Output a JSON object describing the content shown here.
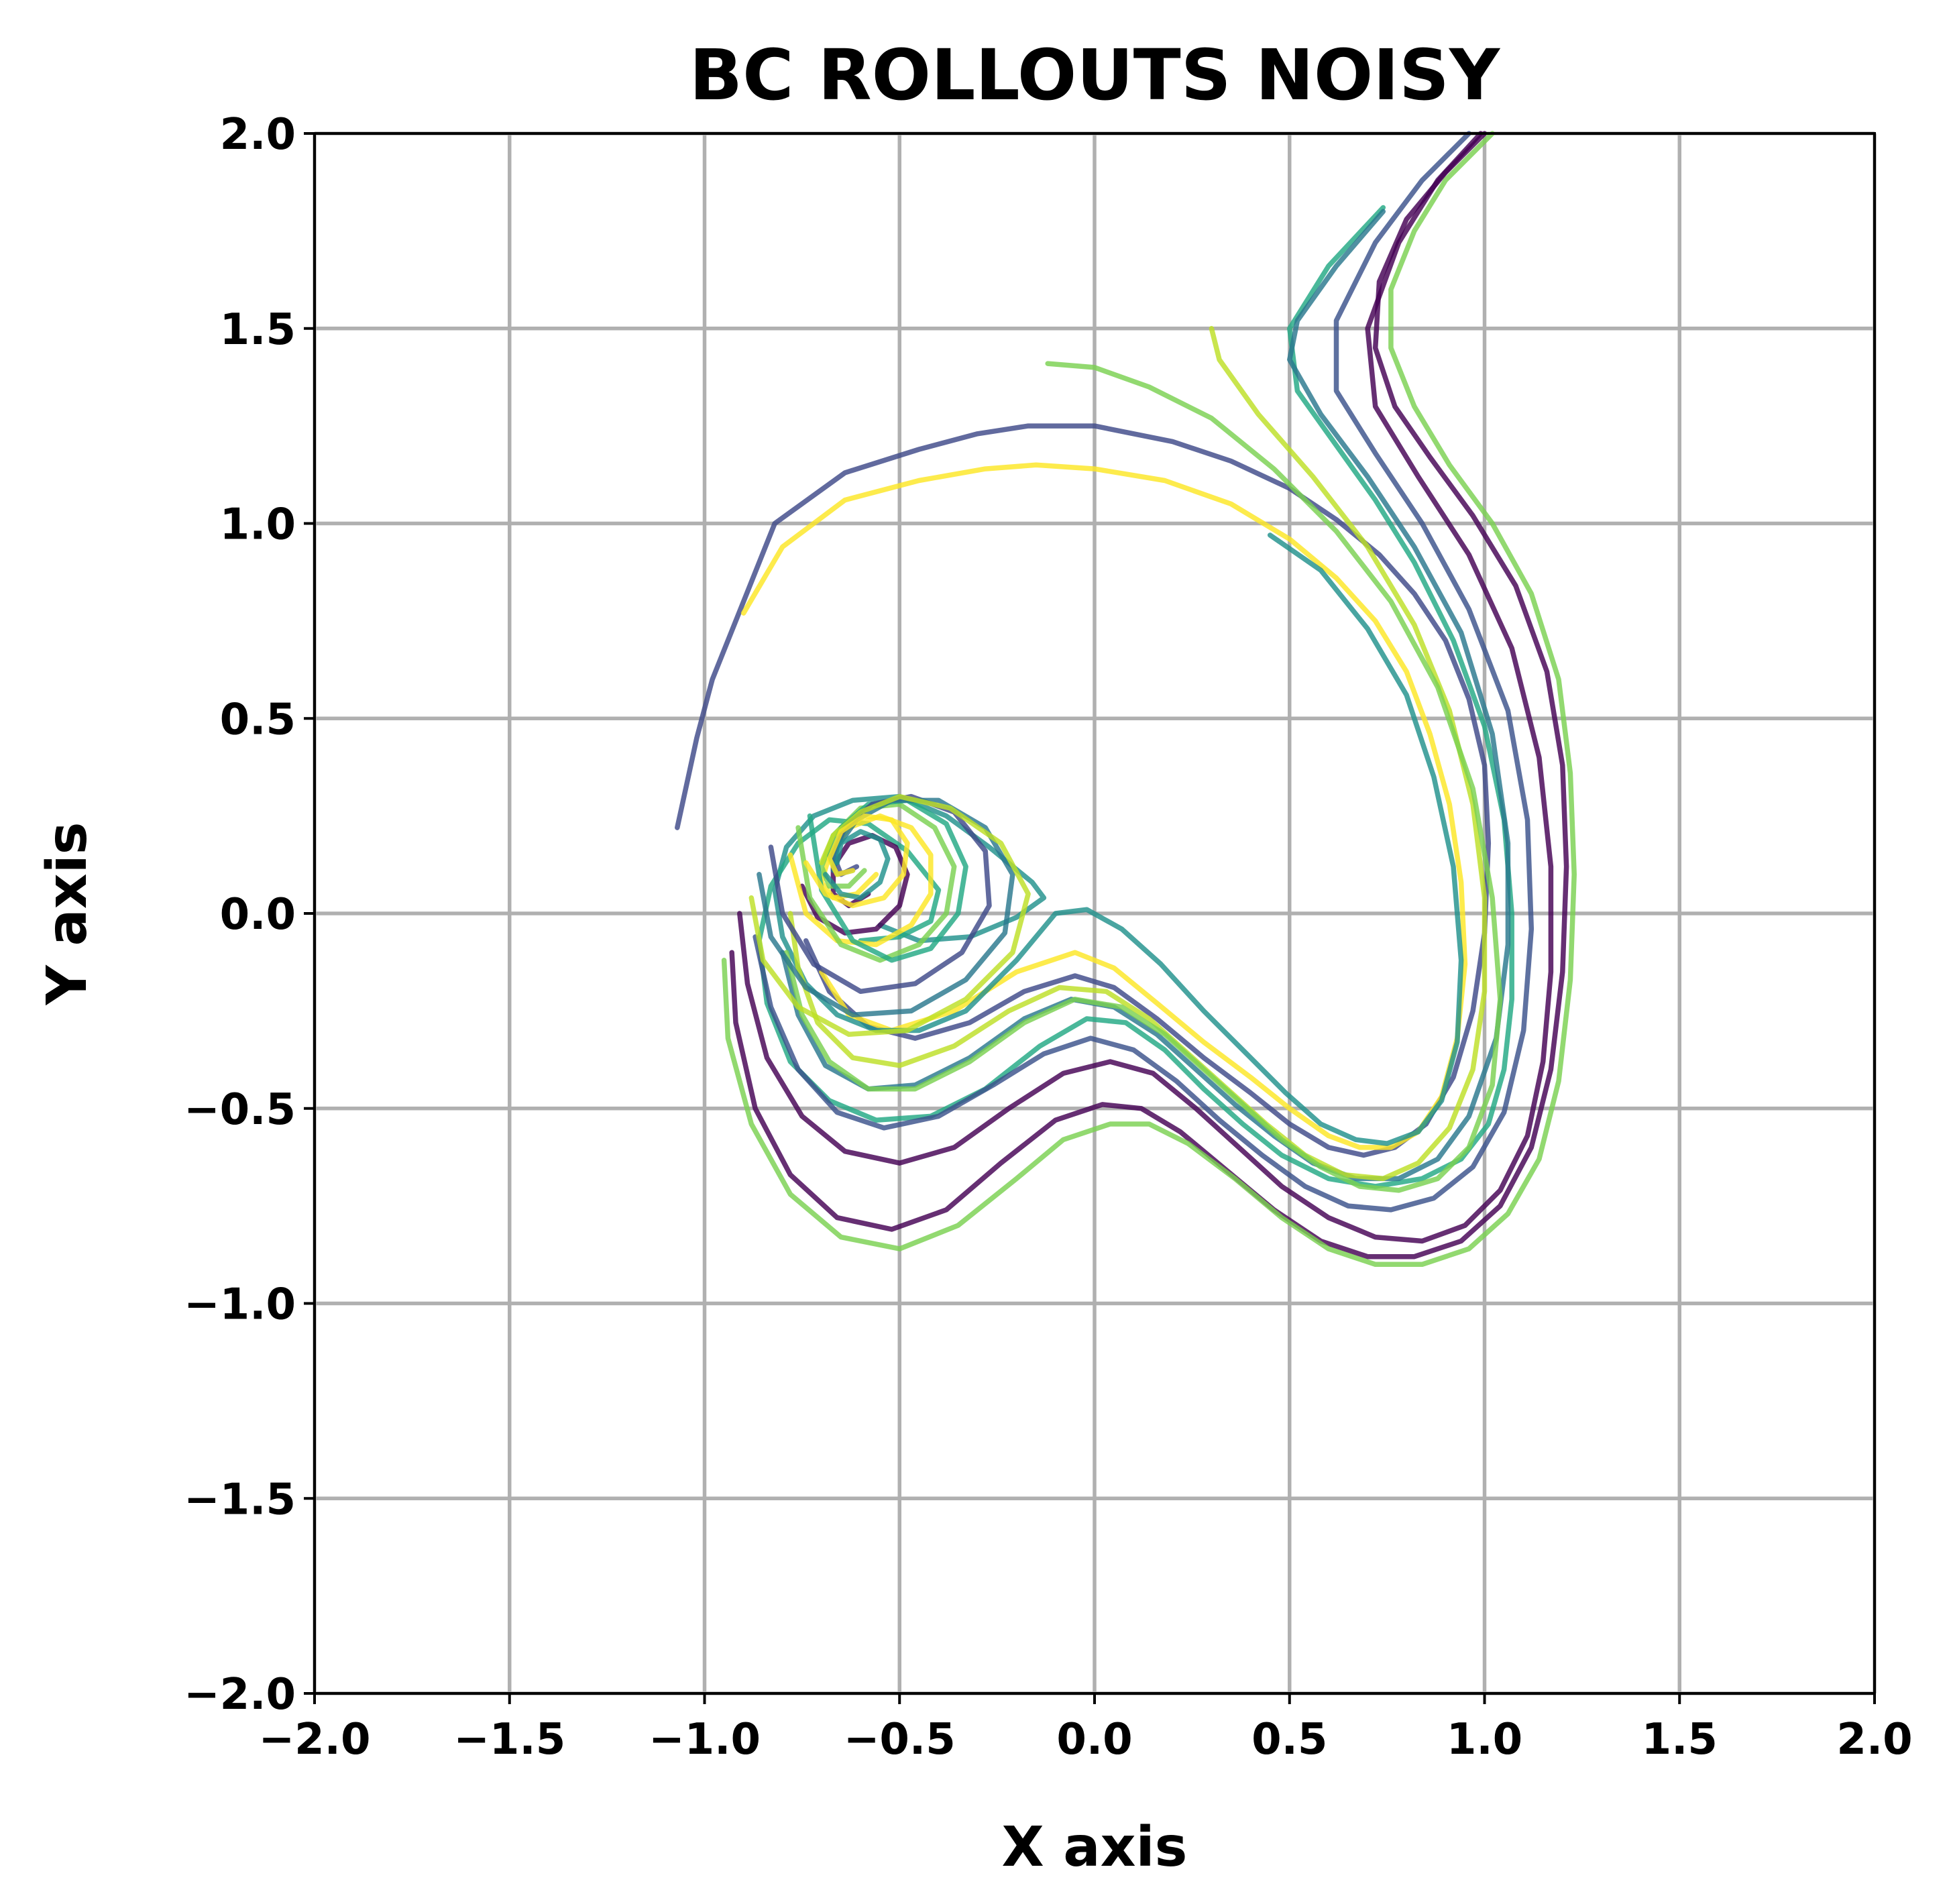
{
  "chart_data": {
    "type": "line",
    "title": "BC ROLLOUTS NOISY",
    "xlabel": "X axis",
    "ylabel": "Y axis",
    "xlim": [
      -2.0,
      2.0
    ],
    "ylim": [
      -2.0,
      2.0
    ],
    "xticks": [
      -2.0,
      -1.5,
      -1.0,
      -0.5,
      0.0,
      0.5,
      1.0,
      1.5,
      2.0
    ],
    "yticks": [
      -2.0,
      -1.5,
      -1.0,
      -0.5,
      0.0,
      0.5,
      1.0,
      1.5,
      2.0
    ],
    "xtick_labels": [
      "−2.0",
      "−1.5",
      "−1.0",
      "−0.5",
      "0.0",
      "0.5",
      "1.0",
      "1.5",
      "2.0"
    ],
    "ytick_labels": [
      "−2.0",
      "−1.5",
      "−1.0",
      "−0.5",
      "0.0",
      "0.5",
      "1.0",
      "1.5",
      "2.0"
    ],
    "grid": true,
    "colormap": "viridis",
    "opacity": 0.82,
    "series": [
      {
        "color": "#3e4989",
        "x": [
          -1.07,
          -1.02,
          -0.98,
          -0.9,
          -0.82,
          -0.64,
          -0.45,
          -0.3,
          -0.17,
          0.0,
          0.2,
          0.35,
          0.5,
          0.62,
          0.73,
          0.82,
          0.9,
          0.96,
          1.0,
          1.01,
          1.0,
          0.97,
          0.92,
          0.85,
          0.77,
          0.69,
          0.6,
          0.5,
          0.4,
          0.28,
          0.16,
          0.05,
          -0.05,
          -0.18,
          -0.32,
          -0.46,
          -0.58,
          -0.68,
          -0.74
        ],
        "y": [
          0.22,
          0.45,
          0.6,
          0.8,
          1.0,
          1.13,
          1.19,
          1.23,
          1.25,
          1.25,
          1.21,
          1.16,
          1.09,
          1.01,
          0.92,
          0.82,
          0.7,
          0.55,
          0.38,
          0.18,
          -0.05,
          -0.25,
          -0.42,
          -0.54,
          -0.6,
          -0.62,
          -0.6,
          -0.54,
          -0.46,
          -0.37,
          -0.27,
          -0.19,
          -0.16,
          -0.2,
          -0.28,
          -0.32,
          -0.29,
          -0.2,
          -0.07
        ]
      },
      {
        "color": "#fde725",
        "x": [
          -0.9,
          -0.8,
          -0.64,
          -0.45,
          -0.28,
          -0.15,
          0.0,
          0.18,
          0.35,
          0.5,
          0.62,
          0.72,
          0.8,
          0.86,
          0.91,
          0.94,
          0.95,
          0.93,
          0.89,
          0.83,
          0.76,
          0.68,
          0.6,
          0.5,
          0.4,
          0.28,
          0.16,
          0.05,
          -0.05,
          -0.2,
          -0.36,
          -0.52,
          -0.63,
          -0.7
        ],
        "y": [
          0.77,
          0.94,
          1.06,
          1.11,
          1.14,
          1.15,
          1.14,
          1.11,
          1.05,
          0.96,
          0.86,
          0.75,
          0.62,
          0.46,
          0.28,
          0.08,
          -0.13,
          -0.32,
          -0.47,
          -0.56,
          -0.6,
          -0.6,
          -0.57,
          -0.5,
          -0.42,
          -0.33,
          -0.23,
          -0.14,
          -0.1,
          -0.15,
          -0.25,
          -0.3,
          -0.26,
          -0.15
        ]
      },
      {
        "color": "#21918c",
        "x": [
          0.45,
          0.58,
          0.7,
          0.8,
          0.87,
          0.92,
          0.94,
          0.93,
          0.89,
          0.83,
          0.75,
          0.67,
          0.58,
          0.49,
          0.39,
          0.28,
          0.17,
          0.07,
          -0.02,
          -0.1,
          -0.2,
          -0.33,
          -0.45,
          -0.56,
          -0.66,
          -0.74,
          -0.8,
          -0.82,
          -0.79,
          -0.72,
          -0.62,
          -0.5,
          -0.38,
          -0.27,
          -0.16,
          -0.13,
          -0.2,
          -0.32,
          -0.45,
          -0.55
        ],
        "y": [
          0.97,
          0.88,
          0.73,
          0.56,
          0.35,
          0.12,
          -0.12,
          -0.33,
          -0.48,
          -0.56,
          -0.59,
          -0.58,
          -0.54,
          -0.46,
          -0.36,
          -0.25,
          -0.13,
          -0.04,
          0.01,
          0.0,
          -0.12,
          -0.25,
          -0.3,
          -0.3,
          -0.26,
          -0.18,
          -0.06,
          0.06,
          0.17,
          0.25,
          0.29,
          0.3,
          0.25,
          0.17,
          0.08,
          0.04,
          -0.01,
          -0.06,
          -0.07,
          -0.03
        ]
      },
      {
        "color": "#22a884",
        "x": [
          0.74,
          0.6,
          0.5,
          0.52,
          0.62,
          0.72,
          0.82,
          0.92,
          1.0,
          1.05,
          1.07,
          1.07,
          1.05,
          1.01,
          0.94,
          0.84,
          0.72,
          0.6,
          0.48,
          0.38,
          0.28,
          0.18,
          0.08,
          -0.02,
          -0.14,
          -0.28,
          -0.42,
          -0.56,
          -0.68,
          -0.78,
          -0.84,
          -0.86,
          -0.83,
          -0.76,
          -0.68,
          -0.58,
          -0.48,
          -0.4,
          -0.42,
          -0.5,
          -0.6
        ],
        "y": [
          1.81,
          1.66,
          1.5,
          1.34,
          1.2,
          1.06,
          0.9,
          0.7,
          0.48,
          0.24,
          0.0,
          -0.22,
          -0.4,
          -0.54,
          -0.63,
          -0.68,
          -0.7,
          -0.68,
          -0.62,
          -0.54,
          -0.45,
          -0.35,
          -0.28,
          -0.27,
          -0.34,
          -0.45,
          -0.52,
          -0.53,
          -0.48,
          -0.38,
          -0.23,
          -0.07,
          0.07,
          0.18,
          0.24,
          0.23,
          0.16,
          0.06,
          -0.02,
          -0.06,
          -0.07
        ]
      },
      {
        "color": "#440154",
        "x": [
          1.0,
          0.9,
          0.8,
          0.73,
          0.72,
          0.77,
          0.86,
          0.97,
          1.08,
          1.16,
          1.2,
          1.21,
          1.2,
          1.17,
          1.12,
          1.04,
          0.94,
          0.82,
          0.7,
          0.58,
          0.46,
          0.34,
          0.22,
          0.12,
          0.02,
          -0.1,
          -0.24,
          -0.38,
          -0.52,
          -0.66,
          -0.78,
          -0.87,
          -0.92,
          -0.93
        ],
        "y": [
          2.0,
          1.9,
          1.78,
          1.62,
          1.45,
          1.3,
          1.17,
          1.02,
          0.84,
          0.62,
          0.38,
          0.12,
          -0.15,
          -0.4,
          -0.6,
          -0.75,
          -0.84,
          -0.88,
          -0.88,
          -0.84,
          -0.76,
          -0.66,
          -0.56,
          -0.5,
          -0.49,
          -0.53,
          -0.64,
          -0.76,
          -0.81,
          -0.78,
          -0.67,
          -0.5,
          -0.28,
          -0.1
        ]
      },
      {
        "color": "#7ad151",
        "x": [
          1.02,
          0.9,
          0.82,
          0.76,
          0.76,
          0.82,
          0.91,
          1.02,
          1.12,
          1.19,
          1.22,
          1.23,
          1.22,
          1.19,
          1.14,
          1.06,
          0.96,
          0.84,
          0.72,
          0.6,
          0.48,
          0.36,
          0.24,
          0.14,
          0.04,
          -0.08,
          -0.2,
          -0.35,
          -0.5,
          -0.65,
          -0.78,
          -0.88,
          -0.94,
          -0.95
        ],
        "y": [
          2.0,
          1.88,
          1.75,
          1.6,
          1.45,
          1.3,
          1.15,
          1.0,
          0.82,
          0.6,
          0.36,
          0.1,
          -0.17,
          -0.43,
          -0.63,
          -0.77,
          -0.86,
          -0.9,
          -0.9,
          -0.86,
          -0.78,
          -0.68,
          -0.59,
          -0.54,
          -0.54,
          -0.58,
          -0.68,
          -0.8,
          -0.86,
          -0.83,
          -0.72,
          -0.54,
          -0.32,
          -0.12
        ]
      },
      {
        "color": "#440154",
        "x": [
          0.99,
          0.88,
          0.78,
          0.7,
          0.72,
          0.83,
          0.96,
          1.07,
          1.14,
          1.17,
          1.17,
          1.15,
          1.11,
          1.04,
          0.95,
          0.84,
          0.72,
          0.6,
          0.48,
          0.37,
          0.26,
          0.15,
          0.04,
          -0.08,
          -0.22,
          -0.36,
          -0.5,
          -0.64,
          -0.75,
          -0.84,
          -0.89,
          -0.91
        ],
        "y": [
          2.0,
          1.88,
          1.72,
          1.5,
          1.3,
          1.12,
          0.92,
          0.68,
          0.4,
          0.12,
          -0.15,
          -0.38,
          -0.57,
          -0.71,
          -0.8,
          -0.84,
          -0.83,
          -0.78,
          -0.7,
          -0.6,
          -0.5,
          -0.41,
          -0.38,
          -0.41,
          -0.5,
          -0.6,
          -0.64,
          -0.61,
          -0.52,
          -0.37,
          -0.18,
          0.0
        ]
      },
      {
        "color": "#3b528b",
        "x": [
          0.96,
          0.84,
          0.72,
          0.62,
          0.62,
          0.72,
          0.84,
          0.96,
          1.06,
          1.11,
          1.12,
          1.1,
          1.05,
          0.97,
          0.87,
          0.76,
          0.65,
          0.54,
          0.43,
          0.32,
          0.21,
          0.1,
          -0.01,
          -0.13,
          -0.26,
          -0.4,
          -0.54,
          -0.66,
          -0.76,
          -0.83,
          -0.87
        ],
        "y": [
          2.0,
          1.88,
          1.72,
          1.52,
          1.34,
          1.18,
          1.0,
          0.78,
          0.52,
          0.24,
          -0.04,
          -0.3,
          -0.51,
          -0.65,
          -0.73,
          -0.76,
          -0.75,
          -0.7,
          -0.62,
          -0.53,
          -0.43,
          -0.35,
          -0.32,
          -0.36,
          -0.44,
          -0.52,
          -0.55,
          -0.51,
          -0.4,
          -0.24,
          -0.06
        ]
      },
      {
        "color": "#2a788e",
        "x": [
          0.74,
          0.62,
          0.52,
          0.5,
          0.58,
          0.7,
          0.82,
          0.94,
          1.02,
          1.06,
          1.06,
          1.03,
          0.96,
          0.88,
          0.78,
          0.67,
          0.56,
          0.46,
          0.36,
          0.26,
          0.16,
          0.05,
          -0.06,
          -0.18,
          -0.32,
          -0.46,
          -0.58,
          -0.69,
          -0.76,
          -0.8
        ],
        "y": [
          1.8,
          1.66,
          1.52,
          1.42,
          1.28,
          1.12,
          0.94,
          0.72,
          0.46,
          0.18,
          -0.08,
          -0.32,
          -0.52,
          -0.63,
          -0.68,
          -0.68,
          -0.64,
          -0.57,
          -0.49,
          -0.4,
          -0.31,
          -0.24,
          -0.22,
          -0.27,
          -0.37,
          -0.44,
          -0.45,
          -0.39,
          -0.26,
          -0.1
        ]
      },
      {
        "color": "#bddf26",
        "x": [
          0.3,
          0.32,
          0.42,
          0.56,
          0.7,
          0.82,
          0.91,
          0.97,
          1.0,
          1.0,
          0.97,
          0.91,
          0.83,
          0.74,
          0.64,
          0.54,
          0.44,
          0.34,
          0.24,
          0.14,
          0.03,
          -0.09,
          -0.22,
          -0.36,
          -0.5,
          -0.62,
          -0.71,
          -0.76,
          -0.78
        ],
        "y": [
          1.5,
          1.42,
          1.28,
          1.12,
          0.94,
          0.74,
          0.52,
          0.28,
          0.04,
          -0.2,
          -0.4,
          -0.55,
          -0.64,
          -0.68,
          -0.67,
          -0.62,
          -0.54,
          -0.45,
          -0.36,
          -0.27,
          -0.2,
          -0.19,
          -0.25,
          -0.34,
          -0.39,
          -0.37,
          -0.28,
          -0.14,
          0.0
        ]
      },
      {
        "color": "#7ad151",
        "x": [
          -0.12,
          0.0,
          0.14,
          0.3,
          0.46,
          0.62,
          0.76,
          0.88,
          0.97,
          1.02,
          1.04,
          1.02,
          0.96,
          0.88,
          0.78,
          0.68,
          0.58,
          0.48,
          0.38,
          0.28,
          0.18,
          0.07,
          -0.05,
          -0.18,
          -0.32,
          -0.46,
          -0.58,
          -0.68,
          -0.75,
          -0.79
        ],
        "y": [
          1.41,
          1.4,
          1.35,
          1.27,
          1.14,
          0.98,
          0.8,
          0.58,
          0.32,
          0.04,
          -0.22,
          -0.44,
          -0.6,
          -0.68,
          -0.71,
          -0.7,
          -0.65,
          -0.58,
          -0.49,
          -0.4,
          -0.31,
          -0.24,
          -0.22,
          -0.28,
          -0.38,
          -0.45,
          -0.45,
          -0.38,
          -0.26,
          -0.1
        ]
      },
      {
        "color": "#440154",
        "x": [
          -0.75,
          -0.71,
          -0.64,
          -0.56,
          -0.5,
          -0.48,
          -0.51,
          -0.57,
          -0.63,
          -0.67,
          -0.67,
          -0.63,
          -0.58
        ],
        "y": [
          0.07,
          -0.01,
          -0.05,
          -0.04,
          0.02,
          0.1,
          0.17,
          0.2,
          0.18,
          0.12,
          0.05,
          0.02,
          0.05
        ]
      },
      {
        "color": "#fde725",
        "x": [
          -0.78,
          -0.74,
          -0.66,
          -0.56,
          -0.47,
          -0.42,
          -0.42,
          -0.47,
          -0.55,
          -0.63,
          -0.68,
          -0.7,
          -0.67,
          -0.61,
          -0.56
        ],
        "y": [
          0.15,
          0.0,
          -0.07,
          -0.08,
          -0.03,
          0.05,
          0.15,
          0.22,
          0.25,
          0.22,
          0.15,
          0.08,
          0.04,
          0.05,
          0.1
        ]
      },
      {
        "color": "#7ad151",
        "x": [
          -0.76,
          -0.73,
          -0.65,
          -0.55,
          -0.45,
          -0.38,
          -0.36,
          -0.41,
          -0.5,
          -0.6,
          -0.67,
          -0.7,
          -0.68,
          -0.63,
          -0.59
        ],
        "y": [
          0.22,
          0.04,
          -0.08,
          -0.12,
          -0.08,
          0.0,
          0.12,
          0.22,
          0.28,
          0.27,
          0.2,
          0.12,
          0.07,
          0.07,
          0.11
        ]
      },
      {
        "color": "#22a884",
        "x": [
          -0.73,
          -0.7,
          -0.62,
          -0.52,
          -0.42,
          -0.35,
          -0.33,
          -0.38,
          -0.48,
          -0.58,
          -0.65,
          -0.68,
          -0.66,
          -0.62
        ],
        "y": [
          0.25,
          0.06,
          -0.07,
          -0.12,
          -0.09,
          0.0,
          0.12,
          0.23,
          0.29,
          0.28,
          0.22,
          0.15,
          0.1,
          0.11
        ]
      },
      {
        "color": "#3e4989",
        "x": [
          -0.83,
          -0.8,
          -0.72,
          -0.6,
          -0.46,
          -0.34,
          -0.27,
          -0.28,
          -0.36,
          -0.47,
          -0.57,
          -0.64,
          -0.67,
          -0.65,
          -0.61
        ],
        "y": [
          0.17,
          0.0,
          -0.13,
          -0.2,
          -0.18,
          -0.1,
          0.02,
          0.16,
          0.26,
          0.3,
          0.28,
          0.22,
          0.15,
          0.1,
          0.12
        ]
      },
      {
        "color": "#2a788e",
        "x": [
          -0.86,
          -0.83,
          -0.74,
          -0.62,
          -0.47,
          -0.33,
          -0.23,
          -0.21,
          -0.28,
          -0.4,
          -0.52,
          -0.61,
          -0.66,
          -0.67
        ],
        "y": [
          0.1,
          -0.06,
          -0.19,
          -0.26,
          -0.25,
          -0.17,
          -0.05,
          0.1,
          0.22,
          0.29,
          0.29,
          0.24,
          0.17,
          0.11
        ]
      },
      {
        "color": "#bddf26",
        "x": [
          -0.88,
          -0.85,
          -0.76,
          -0.63,
          -0.48,
          -0.33,
          -0.21,
          -0.17,
          -0.24,
          -0.37,
          -0.5,
          -0.6,
          -0.67,
          -0.7
        ],
        "y": [
          0.04,
          -0.12,
          -0.24,
          -0.31,
          -0.3,
          -0.22,
          -0.1,
          0.05,
          0.18,
          0.27,
          0.3,
          0.26,
          0.2,
          0.13
        ]
      },
      {
        "color": "#21918c",
        "x": [
          -0.69,
          -0.65,
          -0.6,
          -0.55,
          -0.53,
          -0.55,
          -0.6,
          -0.65,
          -0.66
        ],
        "y": [
          0.1,
          0.05,
          0.04,
          0.08,
          0.14,
          0.19,
          0.21,
          0.18,
          0.13
        ]
      },
      {
        "color": "#fde725",
        "x": [
          -0.74,
          -0.69,
          -0.62,
          -0.54,
          -0.49,
          -0.48,
          -0.52,
          -0.59,
          -0.65,
          -0.68,
          -0.66,
          -0.62
        ],
        "y": [
          0.13,
          0.05,
          0.02,
          0.04,
          0.1,
          0.18,
          0.24,
          0.25,
          0.21,
          0.14,
          0.1,
          0.11
        ]
      }
    ]
  }
}
